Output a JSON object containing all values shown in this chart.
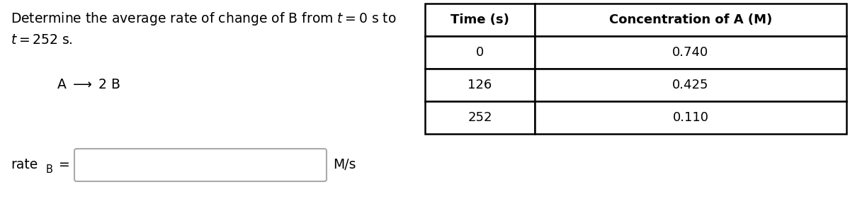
{
  "title_line1": "Determine the average rate of change of B from $t = 0$ s to",
  "title_line2": "$t = 252$ s.",
  "reaction": "A $\\longrightarrow$ 2 B",
  "rate_label_main": "rate",
  "rate_label_sub": "B",
  "rate_label_eq": " =",
  "rate_unit": "M/s",
  "table_headers": [
    "Time (s)",
    "Concentration of A (M)"
  ],
  "table_data": [
    [
      "0",
      "0.740"
    ],
    [
      "126",
      "0.425"
    ],
    [
      "252",
      "0.110"
    ]
  ],
  "bg_color": "#ffffff",
  "text_color": "#000000",
  "title_fontsize": 13.5,
  "reaction_fontsize": 13.5,
  "rate_fontsize": 13.5,
  "table_header_fontsize": 13,
  "table_data_fontsize": 13
}
